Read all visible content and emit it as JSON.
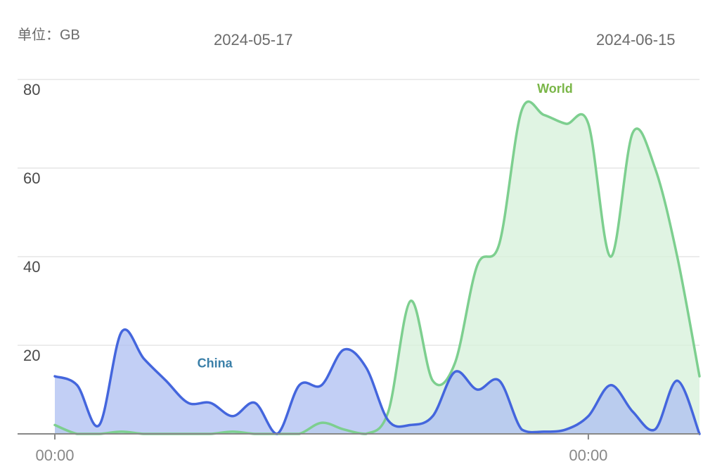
{
  "header": {
    "unit_label": "单位：GB",
    "date_start": "2024-05-17",
    "date_end": "2024-06-15"
  },
  "chart_data": {
    "type": "area",
    "title": "",
    "xlabel": "",
    "ylabel": "单位：GB",
    "ylim": [
      0,
      80
    ],
    "xlim": [
      0,
      29
    ],
    "y_ticks": [
      20,
      40,
      60,
      80
    ],
    "x_ticks": [
      {
        "x": 0,
        "label": "00:00"
      },
      {
        "x": 24,
        "label": "00:00"
      }
    ],
    "grid": true,
    "series": [
      {
        "name": "World",
        "color": "#7dcf8f",
        "fill": "#d5f0da",
        "label_at": {
          "x": 22.5,
          "y": 77
        },
        "x": [
          0,
          1,
          2,
          3,
          4,
          5,
          6,
          7,
          8,
          9,
          10,
          11,
          12,
          13,
          14,
          15,
          16,
          17,
          18,
          19,
          20,
          21,
          22,
          23,
          24,
          25,
          26,
          27,
          28,
          29
        ],
        "values": [
          2,
          0,
          0,
          0.5,
          0,
          0,
          0,
          0,
          0.5,
          0,
          0,
          0,
          2.5,
          1,
          0,
          5,
          30,
          12,
          16,
          38,
          43,
          73,
          72,
          70,
          70,
          40,
          68,
          60,
          40,
          13
        ]
      },
      {
        "name": "China",
        "color": "#4466dd",
        "fill": "#aebff2",
        "label_at": {
          "x": 7.2,
          "y": 15
        },
        "x": [
          0,
          1,
          2,
          3,
          4,
          5,
          6,
          7,
          8,
          9,
          10,
          11,
          12,
          13,
          14,
          15,
          16,
          17,
          18,
          19,
          20,
          21,
          22,
          23,
          24,
          25,
          26,
          27,
          28,
          29
        ],
        "values": [
          13,
          11,
          2,
          23,
          17,
          12,
          7,
          7,
          4,
          7,
          0,
          11,
          11,
          19,
          15,
          3,
          2,
          4,
          14,
          10,
          12,
          1,
          0.5,
          1,
          4,
          11,
          5,
          1,
          12,
          0
        ]
      }
    ]
  }
}
